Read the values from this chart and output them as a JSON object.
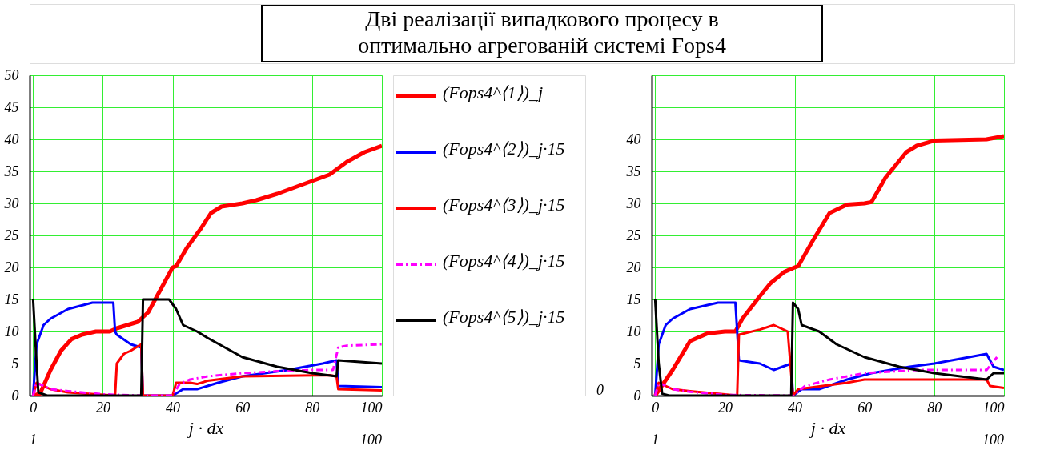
{
  "chart_data": [
    {
      "type": "line",
      "title": "Дві реалізації випадкового процесу в\nоптимально агрегованій системі Fops4",
      "xlabel": "j · dx",
      "annotations": [
        "1",
        "100"
      ],
      "xlim": [
        -1,
        100
      ],
      "xticks": [
        0,
        20,
        40,
        60,
        80,
        100
      ],
      "ylim": [
        0,
        50
      ],
      "yticks": [
        0,
        5,
        10,
        15,
        20,
        25,
        30,
        35,
        40,
        45,
        50
      ],
      "grid": true,
      "legend": "right",
      "marker": "none",
      "series": [
        {
          "name": "(Fops4^⟨1⟩)_j",
          "color": "#ff0000",
          "line_style": "solid",
          "x": [
            0,
            2,
            5,
            8,
            11,
            14,
            18,
            22,
            24,
            30,
            33,
            40,
            41,
            44,
            48,
            51,
            54,
            60,
            64,
            70,
            80,
            85,
            90,
            95,
            100
          ],
          "values": [
            0,
            0.3,
            4,
            7,
            8.8,
            9.5,
            10,
            10,
            10.5,
            11.5,
            13,
            20,
            20.2,
            23,
            26,
            28.5,
            29.5,
            30,
            30.5,
            31.5,
            33.5,
            34.5,
            36.5,
            38,
            39
          ]
        },
        {
          "name": "(Fops4^⟨2⟩)_j·15",
          "color": "#0000ff",
          "line_style": "solid",
          "x": [
            0,
            1,
            3,
            5,
            10,
            17,
            23,
            23.5,
            24,
            28,
            31,
            31.5,
            40,
            43,
            47,
            53,
            60,
            73,
            83,
            87,
            87.5,
            100
          ],
          "values": [
            0,
            8,
            11,
            12,
            13.5,
            14.5,
            14.5,
            10,
            9.5,
            8,
            7.5,
            0,
            0,
            1,
            1,
            2,
            3,
            4,
            5,
            5.5,
            1.5,
            1.3
          ]
        },
        {
          "name": "(Fops4^⟨3⟩)_j·15",
          "color": "#ff0000",
          "line_style": "solid",
          "x": [
            0,
            1,
            5,
            10,
            23.5,
            24,
            26,
            28,
            31,
            31.5,
            40,
            41,
            45,
            47,
            50,
            60,
            85,
            87,
            87.5,
            100
          ],
          "values": [
            0,
            2,
            1,
            0.5,
            0,
            5,
            6.5,
            7,
            8,
            0,
            0,
            2,
            2,
            1.8,
            2.3,
            3,
            3.2,
            3,
            1,
            0.8
          ]
        },
        {
          "name": "(Fops4^⟨4⟩)_j·15",
          "color": "#ff00ff",
          "line_style": "dashed",
          "x": [
            0,
            1,
            5,
            10,
            20,
            31,
            40,
            42,
            45,
            50,
            60,
            70,
            80,
            86,
            87.5,
            90,
            100
          ],
          "values": [
            0,
            2,
            1,
            0.7,
            0.2,
            0,
            0,
            1.8,
            2.5,
            3,
            3.5,
            3.8,
            4,
            4,
            7.5,
            7.8,
            8
          ]
        },
        {
          "name": "(Fops4^⟨5⟩)_j·15",
          "color": "#000000",
          "line_style": "solid",
          "x": [
            0,
            1,
            1.5,
            4,
            31,
            31.5,
            39,
            41,
            43,
            47,
            50,
            55,
            60,
            70,
            80,
            87,
            87.5,
            100
          ],
          "values": [
            15,
            5,
            0.5,
            0,
            0,
            15,
            15,
            13.5,
            11,
            10,
            9,
            7.5,
            6,
            4.5,
            3.5,
            3,
            5.5,
            5
          ]
        }
      ]
    },
    {
      "type": "line",
      "xlabel": "j · dx",
      "annotations": [
        "0",
        "1",
        "100"
      ],
      "xlim": [
        -1,
        100
      ],
      "xticks": [
        0,
        20,
        40,
        60,
        80,
        100
      ],
      "ylim": [
        0,
        50
      ],
      "yticks": [
        0,
        5,
        10,
        15,
        20,
        25,
        30,
        35,
        40,
        {
          "value": 45,
          "label": null
        },
        {
          "value": 50,
          "label": null
        }
      ],
      "grid": true,
      "marker": "none",
      "series": [
        {
          "color": "#ff0000",
          "line_style": "solid",
          "x": [
            0,
            5,
            10,
            15,
            20,
            23,
            25,
            30,
            33,
            37,
            40,
            41,
            45,
            50,
            55,
            60,
            62,
            66,
            72,
            75,
            80,
            95,
            100
          ],
          "values": [
            0,
            4,
            8.5,
            9.7,
            10,
            10,
            12,
            15.5,
            17.5,
            19.3,
            20,
            20.2,
            24,
            28.5,
            29.8,
            30,
            30.2,
            34,
            38,
            39,
            39.8,
            40,
            40.5
          ]
        },
        {
          "color": "#0000ff",
          "line_style": "solid",
          "x": [
            0,
            1,
            3,
            5,
            10,
            18,
            23,
            23.5,
            24,
            30,
            34,
            39,
            39.5,
            42,
            47,
            55,
            62,
            73,
            80,
            90,
            95,
            97,
            100
          ],
          "values": [
            0,
            8,
            11,
            12,
            13.5,
            14.5,
            14.5,
            10,
            5.5,
            5,
            4,
            5,
            0,
            1,
            1,
            2.5,
            3.5,
            4.5,
            5,
            6,
            6.5,
            4.5,
            4
          ]
        },
        {
          "color": "#ff0000",
          "line_style": "solid",
          "x": [
            0,
            1,
            5,
            10,
            20,
            23.5,
            24,
            30,
            34,
            38,
            39.5,
            41,
            48,
            55,
            60,
            95,
            96,
            100
          ],
          "values": [
            0,
            2,
            1,
            0.7,
            0.2,
            0,
            9.5,
            10.3,
            11,
            10,
            0,
            1,
            1.5,
            2,
            2.5,
            2.5,
            1.5,
            1.2
          ]
        },
        {
          "color": "#ff00ff",
          "line_style": "dashed",
          "x": [
            0,
            1,
            5,
            10,
            20,
            39.5,
            43,
            50,
            60,
            75,
            95,
            98
          ],
          "values": [
            0,
            2,
            1,
            0.6,
            0.1,
            0,
            1.5,
            2.5,
            3.5,
            4,
            4,
            6
          ]
        },
        {
          "color": "#000000",
          "line_style": "solid",
          "x": [
            0,
            1,
            2,
            4,
            39,
            39.5,
            41,
            42,
            47,
            52,
            60,
            70,
            80,
            95,
            97,
            100
          ],
          "values": [
            15,
            5,
            0.3,
            0,
            0,
            14.5,
            13.5,
            11,
            10,
            8,
            6,
            4.5,
            3.5,
            2.5,
            3.5,
            3.5
          ]
        }
      ]
    }
  ]
}
